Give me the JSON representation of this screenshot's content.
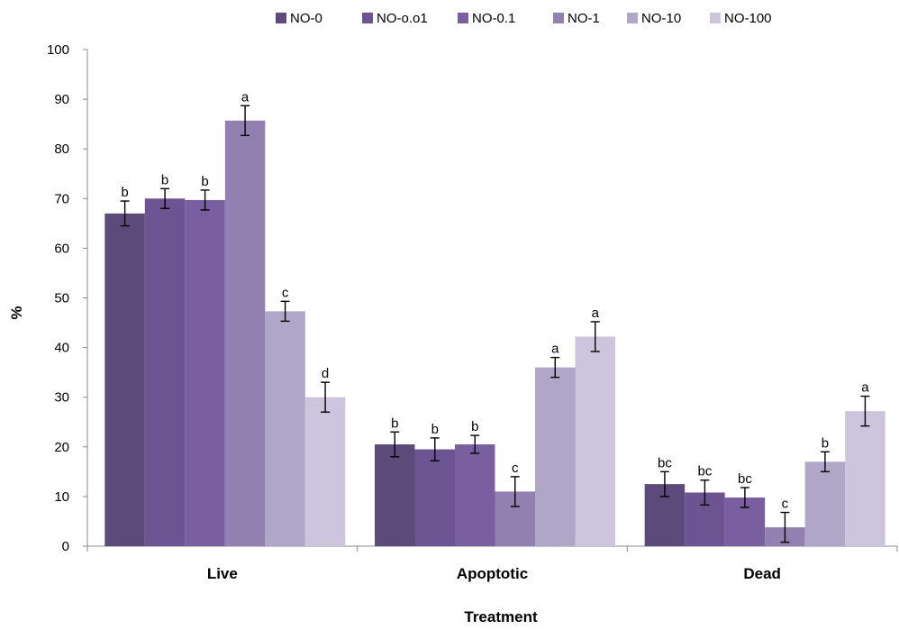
{
  "chart_data": {
    "type": "bar",
    "title": "",
    "xlabel": "Treatment",
    "ylabel": "%",
    "ylim": [
      0,
      100
    ],
    "yticks": [
      0,
      10,
      20,
      30,
      40,
      50,
      60,
      70,
      80,
      90,
      100
    ],
    "grid": false,
    "legend_position": "top",
    "categories": [
      "Live",
      "Apoptotic",
      "Dead"
    ],
    "series": [
      {
        "name": "NO-0",
        "color": "#5b4a7a",
        "values": [
          67,
          20.5,
          12.5
        ],
        "errors": [
          2.5,
          2.5,
          2.5
        ],
        "labels": [
          "b",
          "b",
          "bc"
        ]
      },
      {
        "name": "NO-o.o1",
        "color": "#6b5491",
        "values": [
          70,
          19.5,
          10.8
        ],
        "errors": [
          2,
          2.3,
          2.5
        ],
        "labels": [
          "b",
          "b",
          "bc"
        ]
      },
      {
        "name": "NO-0.1",
        "color": "#7a5fa0",
        "values": [
          69.7,
          20.5,
          9.8
        ],
        "errors": [
          2,
          1.8,
          2
        ],
        "labels": [
          "b",
          "b",
          "bc"
        ]
      },
      {
        "name": "NO-1",
        "color": "#9180b0",
        "values": [
          85.7,
          11,
          3.8
        ],
        "errors": [
          3,
          3,
          3
        ],
        "labels": [
          "a",
          "c",
          "c"
        ]
      },
      {
        "name": "NO-10",
        "color": "#b0a6c8",
        "values": [
          47.3,
          36,
          17
        ],
        "errors": [
          2,
          2,
          2
        ],
        "labels": [
          "c",
          "a",
          "b"
        ]
      },
      {
        "name": "NO-100",
        "color": "#ccc5dd",
        "values": [
          30,
          42.2,
          27.2
        ],
        "errors": [
          3,
          3,
          3
        ],
        "labels": [
          "d",
          "a",
          "a"
        ]
      }
    ]
  }
}
